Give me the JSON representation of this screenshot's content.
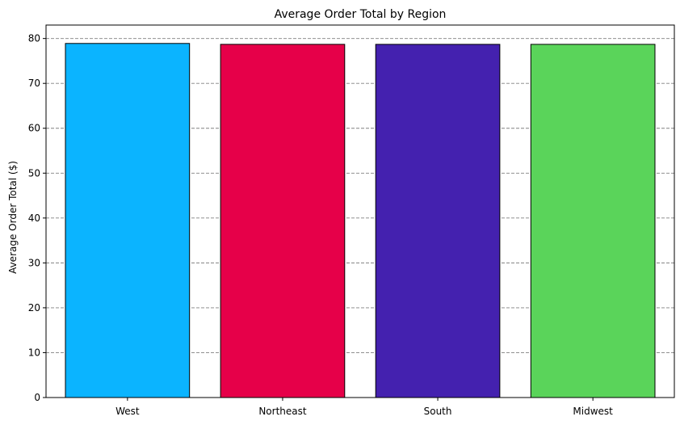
{
  "chart_data": {
    "type": "bar",
    "title": "Average Order Total by Region",
    "xlabel": "",
    "ylabel": "Average Order Total ($)",
    "categories": [
      "West",
      "Northeast",
      "South",
      "Midwest"
    ],
    "values": [
      78.9,
      78.7,
      78.7,
      78.7
    ],
    "colors": [
      "#0bb4ff",
      "#e60049",
      "#4421af",
      "#5ad45a"
    ],
    "ylim": [
      0,
      83
    ],
    "yticks": [
      0,
      10,
      20,
      30,
      40,
      50,
      60,
      70,
      80
    ],
    "grid": true,
    "grid_axis": "y",
    "grid_style": "dashed"
  }
}
